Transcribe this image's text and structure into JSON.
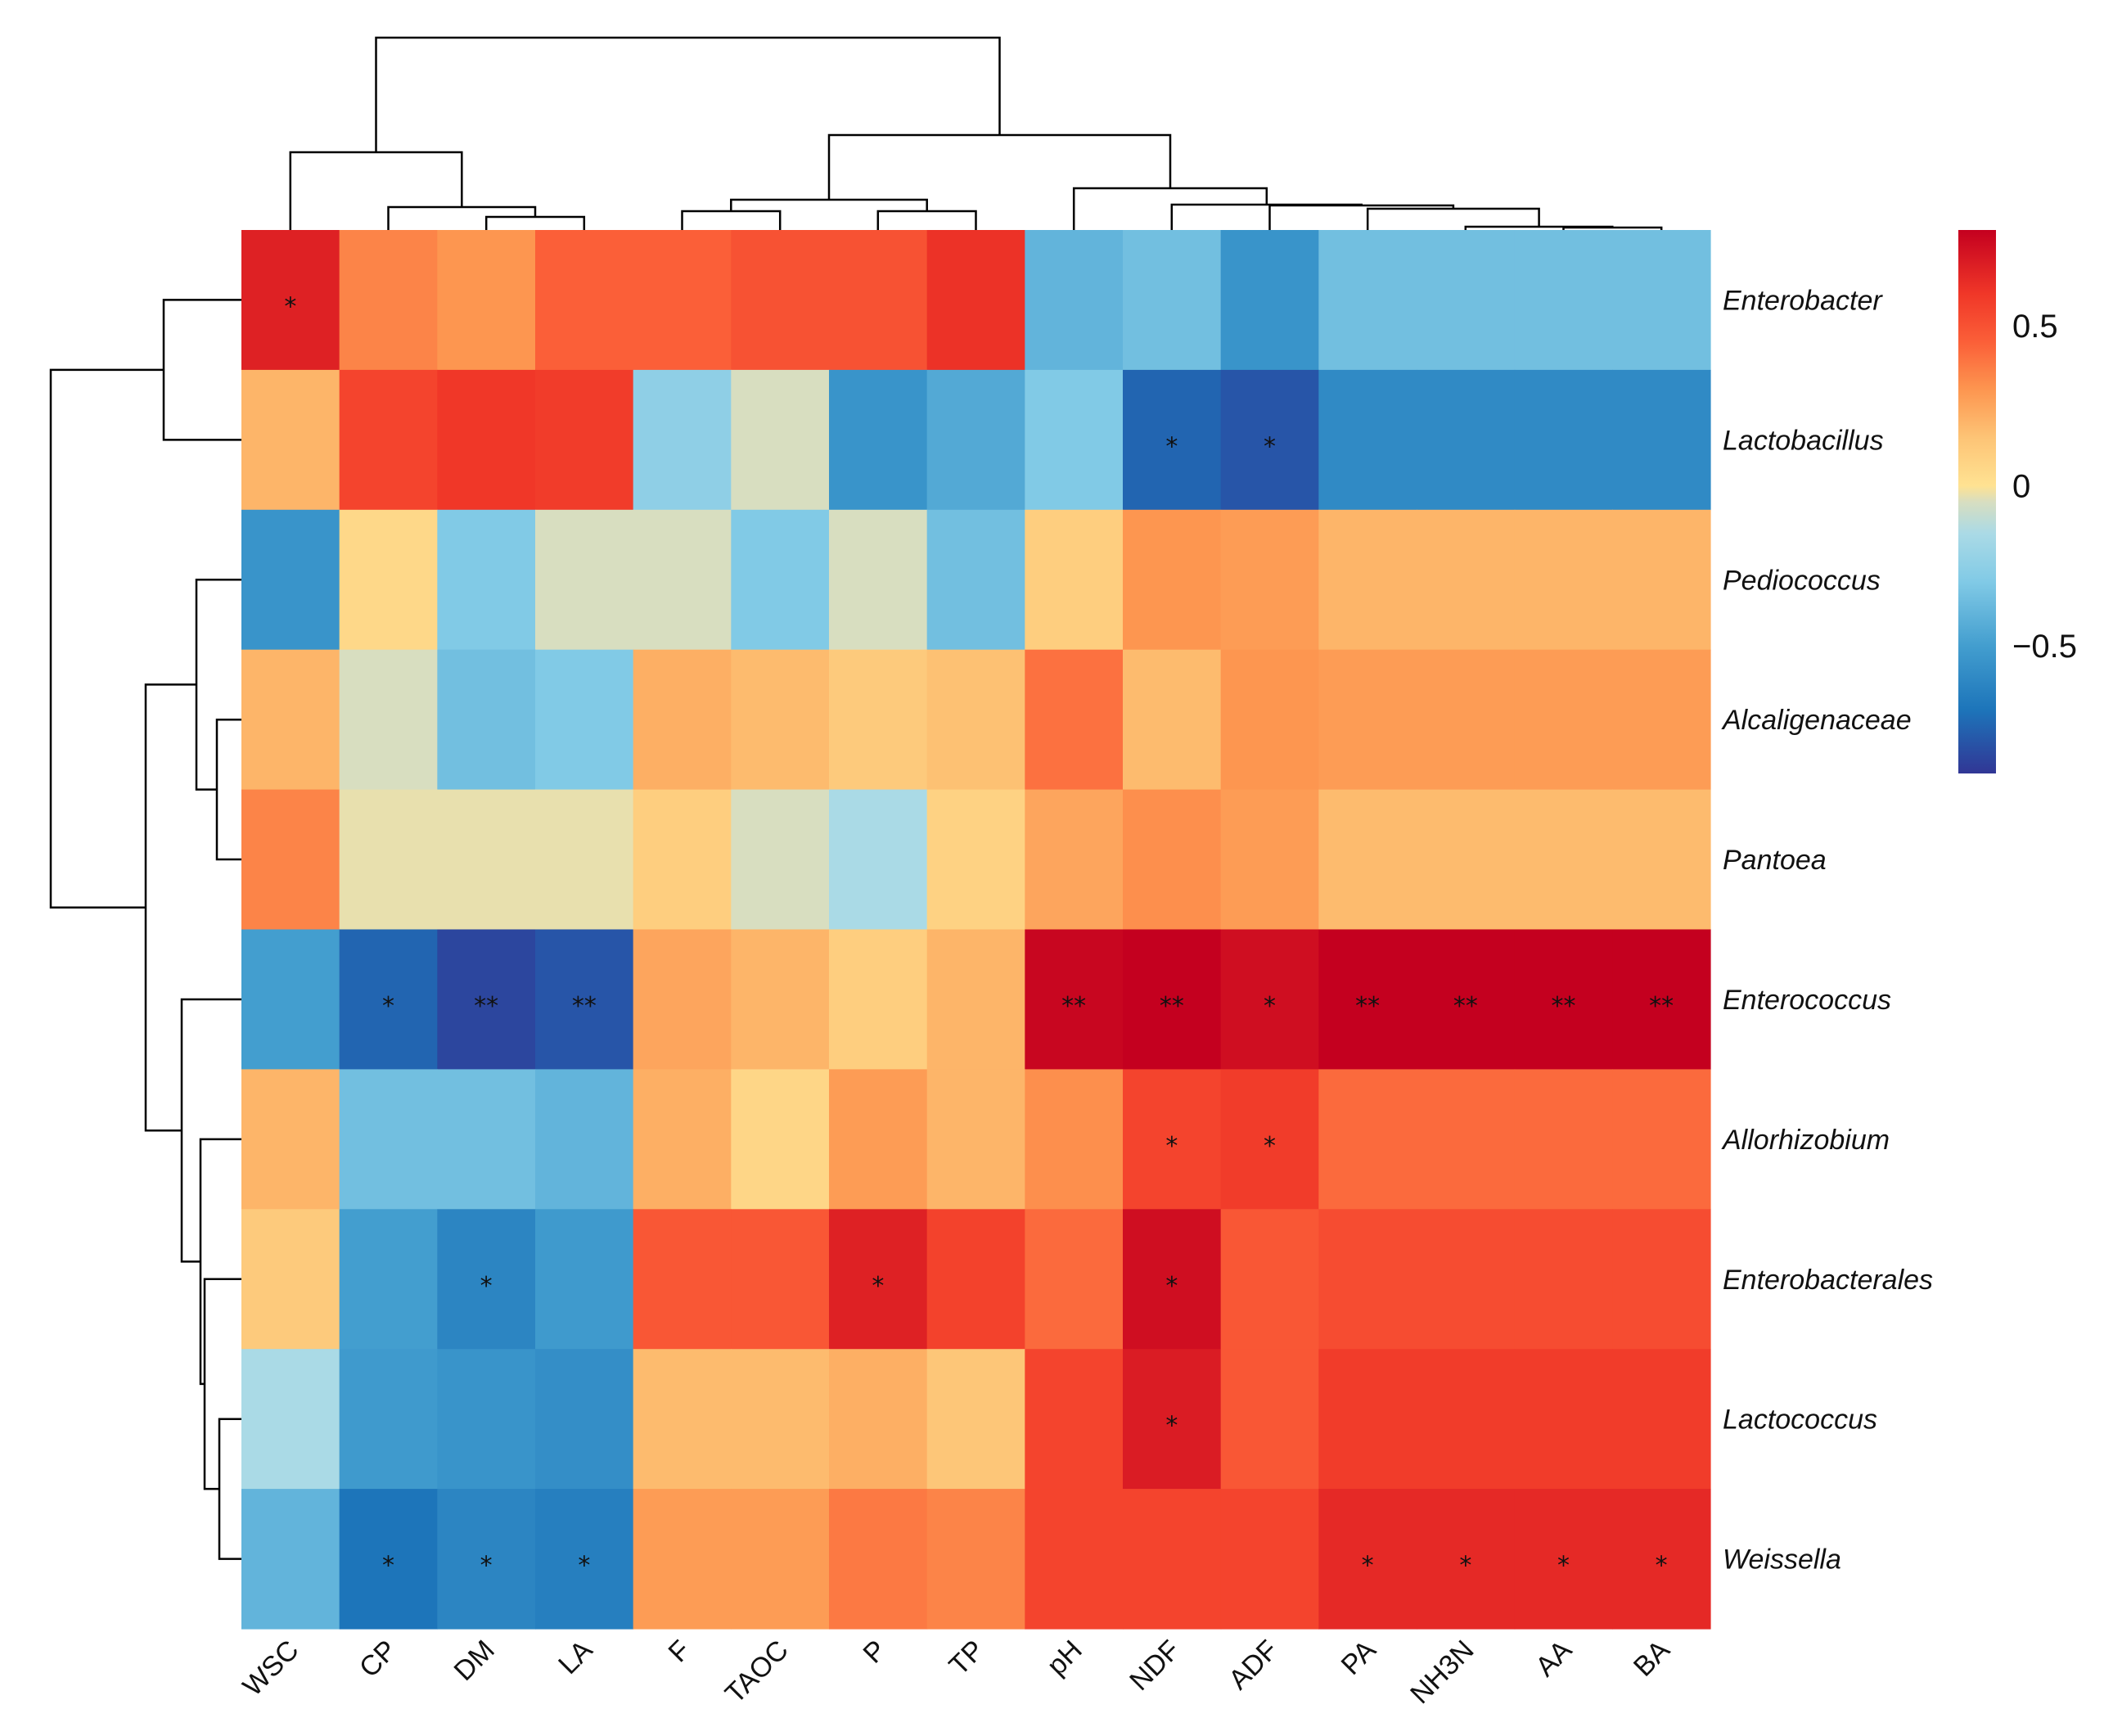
{
  "chart_data": {
    "type": "heatmap",
    "title": "",
    "xlabel": "",
    "ylabel": "",
    "columns": [
      "WSC",
      "CP",
      "DM",
      "LA",
      "F",
      "TAOC",
      "P",
      "TP",
      "pH",
      "NDF",
      "ADF",
      "PA",
      "NH3N",
      "AA",
      "BA"
    ],
    "rows": [
      "Enterobacter",
      "Lactobacillus",
      "Pediococcus",
      "Alcaligenaceae",
      "Pantoea",
      "Enterococcus",
      "Allorhizobium",
      "Enterobacterales",
      "Lactococcus",
      "Weissella"
    ],
    "values": [
      [
        0.68,
        0.35,
        0.3,
        0.45,
        0.45,
        0.5,
        0.5,
        0.62,
        -0.4,
        -0.35,
        -0.55,
        -0.35,
        -0.35,
        -0.35,
        -0.35
      ],
      [
        0.2,
        0.55,
        0.6,
        0.58,
        -0.25,
        -0.05,
        -0.55,
        -0.45,
        -0.3,
        -0.75,
        -0.8,
        -0.6,
        -0.6,
        -0.6,
        -0.6
      ],
      [
        -0.55,
        0.05,
        -0.3,
        -0.05,
        -0.05,
        -0.3,
        -0.05,
        -0.35,
        0.1,
        0.3,
        0.28,
        0.2,
        0.2,
        0.2,
        0.2
      ],
      [
        0.2,
        -0.05,
        -0.35,
        -0.3,
        0.22,
        0.18,
        0.12,
        0.16,
        0.4,
        0.18,
        0.3,
        0.28,
        0.28,
        0.28,
        0.28
      ],
      [
        0.35,
        -0.03,
        -0.03,
        -0.03,
        0.1,
        -0.05,
        -0.15,
        0.08,
        0.25,
        0.32,
        0.28,
        0.18,
        0.18,
        0.18,
        0.18
      ],
      [
        -0.5,
        -0.75,
        -0.85,
        -0.8,
        0.25,
        0.2,
        0.1,
        0.2,
        0.78,
        0.82,
        0.75,
        0.85,
        0.85,
        0.85,
        0.85
      ],
      [
        0.2,
        -0.35,
        -0.35,
        -0.4,
        0.22,
        0.06,
        0.28,
        0.2,
        0.32,
        0.55,
        0.58,
        0.42,
        0.42,
        0.42,
        0.42
      ],
      [
        0.12,
        -0.5,
        -0.62,
        -0.52,
        0.48,
        0.48,
        0.68,
        0.56,
        0.42,
        0.75,
        0.48,
        0.52,
        0.52,
        0.52,
        0.52
      ],
      [
        -0.15,
        -0.52,
        -0.55,
        -0.58,
        0.18,
        0.18,
        0.22,
        0.14,
        0.55,
        0.7,
        0.48,
        0.58,
        0.58,
        0.58,
        0.58
      ],
      [
        -0.4,
        -0.7,
        -0.62,
        -0.65,
        0.28,
        0.28,
        0.38,
        0.35,
        0.55,
        0.55,
        0.55,
        0.65,
        0.65,
        0.65,
        0.65
      ]
    ],
    "significance": [
      [
        "*",
        "",
        "",
        "",
        "",
        "",
        "",
        "",
        "",
        "",
        "",
        "",
        "",
        "",
        ""
      ],
      [
        "",
        "",
        "",
        "",
        "",
        "",
        "",
        "",
        "",
        "*",
        "*",
        "",
        "",
        "",
        ""
      ],
      [
        "",
        "",
        "",
        "",
        "",
        "",
        "",
        "",
        "",
        "",
        "",
        "",
        "",
        "",
        ""
      ],
      [
        "",
        "",
        "",
        "",
        "",
        "",
        "",
        "",
        "",
        "",
        "",
        "",
        "",
        "",
        ""
      ],
      [
        "",
        "",
        "",
        "",
        "",
        "",
        "",
        "",
        "",
        "",
        "",
        "",
        "",
        "",
        ""
      ],
      [
        "",
        "*",
        "**",
        "**",
        "",
        "",
        "",
        "",
        "**",
        "**",
        "*",
        "**",
        "**",
        "**",
        "**"
      ],
      [
        "",
        "",
        "",
        "",
        "",
        "",
        "",
        "",
        "",
        "*",
        "*",
        "",
        "",
        "",
        ""
      ],
      [
        "",
        "",
        "*",
        "",
        "",
        "",
        "*",
        "",
        "",
        "*",
        "",
        "",
        "",
        "",
        ""
      ],
      [
        "",
        "",
        "",
        "",
        "",
        "",
        "",
        "",
        "",
        "*",
        "",
        "",
        "",
        "",
        ""
      ],
      [
        "",
        "*",
        "*",
        "*",
        "",
        "",
        "",
        "",
        "",
        "",
        "",
        "*",
        "*",
        "*",
        "*"
      ]
    ],
    "value_range": [
      -0.9,
      0.8
    ],
    "legend": {
      "position": "right",
      "ticks": [
        0.5,
        0,
        -0.5
      ],
      "tick_labels": [
        "0.5",
        "0",
        "−0.5"
      ]
    },
    "palette": {
      "low": "#313695",
      "mid": "#FFE090",
      "high": "#C4001F"
    },
    "dendrograms": {
      "columns_shown": true,
      "rows_shown": true
    }
  }
}
